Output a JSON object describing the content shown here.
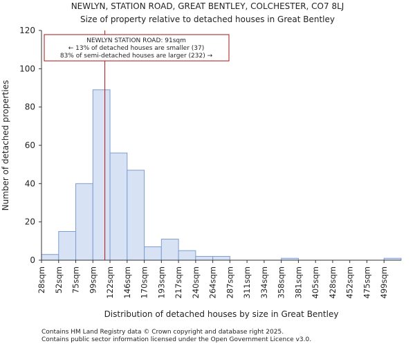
{
  "chart_data": {
    "type": "bar",
    "title": "NEWLYN, STATION ROAD, GREAT BENTLEY, COLCHESTER, CO7 8LJ",
    "subtitle": "Size of property relative to detached houses in Great Bentley",
    "xlabel": "Distribution of detached houses by size in Great Bentley",
    "ylabel": "Number of detached properties",
    "categories": [
      "28sqm",
      "52sqm",
      "75sqm",
      "99sqm",
      "122sqm",
      "146sqm",
      "170sqm",
      "193sqm",
      "217sqm",
      "240sqm",
      "264sqm",
      "287sqm",
      "311sqm",
      "334sqm",
      "358sqm",
      "381sqm",
      "405sqm",
      "428sqm",
      "452sqm",
      "475sqm",
      "499sqm"
    ],
    "values": [
      3,
      15,
      40,
      89,
      56,
      47,
      7,
      11,
      5,
      2,
      2,
      0,
      0,
      0,
      1,
      0,
      0,
      0,
      0,
      0,
      1
    ],
    "ylim": [
      0,
      120
    ],
    "yticks": [
      0,
      20,
      40,
      60,
      80,
      100,
      120
    ],
    "marker_value": 3.7,
    "annotation": {
      "line1": "NEWLYN STATION ROAD: 91sqm",
      "line2": "← 13% of detached houses are smaller (37)",
      "line3": "83% of semi-detached houses are larger (232) →"
    },
    "colors": {
      "bar_fill": "#d7e2f4",
      "bar_edge": "#7e9ccf",
      "marker": "#aa1111",
      "box_edge": "#aa1111"
    }
  },
  "footer": {
    "line1": "Contains HM Land Registry data © Crown copyright and database right 2025.",
    "line2": "Contains public sector information licensed under the Open Government Licence v3.0."
  }
}
